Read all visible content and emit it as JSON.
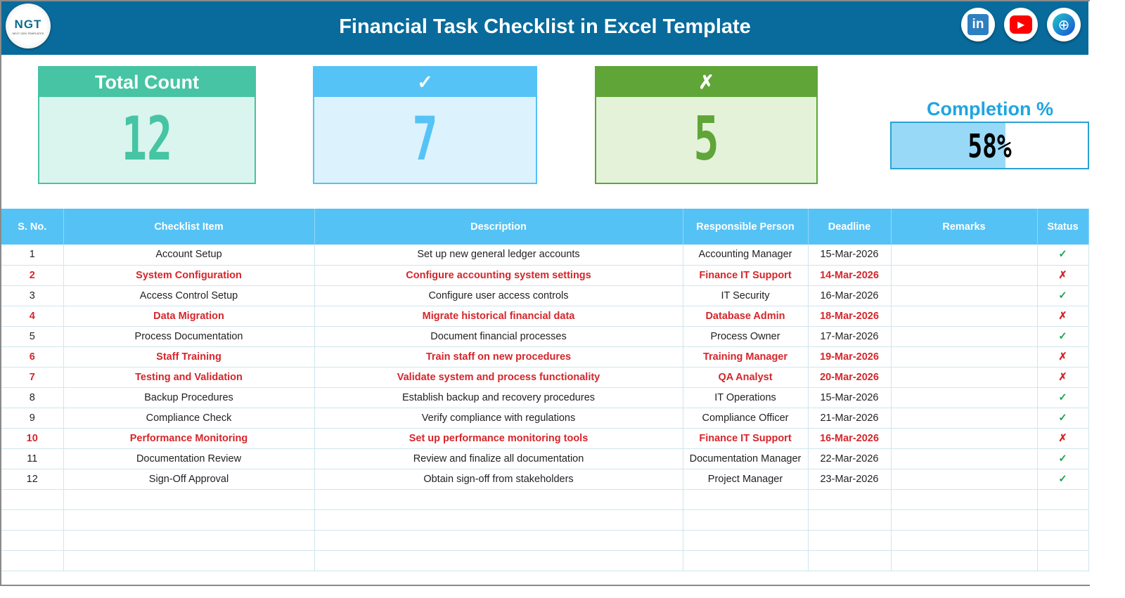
{
  "header": {
    "title": "Financial Task Checklist in Excel Template",
    "logo_text": "NGT",
    "logo_sub": "NEXT GEN TEMPLATES",
    "social": [
      "linkedin-icon",
      "youtube-icon",
      "globe-icon"
    ]
  },
  "cards": [
    {
      "label": "Total Count",
      "value": "12",
      "color": "#46c4a3",
      "bg": "#daf4ee"
    },
    {
      "label": "✓",
      "value": "7",
      "color": "#56c3f6",
      "bg": "#dcf2fc"
    },
    {
      "label": "✗",
      "value": "5",
      "color": "#5fa538",
      "bg": "#e3f2d9"
    }
  ],
  "completion": {
    "label": "Completion %",
    "value": "58%",
    "fraction": 0.58
  },
  "table": {
    "columns": [
      "S. No.",
      "Checklist Item",
      "Description",
      "Responsible Person",
      "Deadline",
      "Remarks",
      "Status"
    ],
    "rows": [
      [
        "1",
        "Account Setup",
        "Set up new general ledger accounts",
        "Accounting Manager",
        "15-Mar-2026",
        "",
        "✓"
      ],
      [
        "2",
        "System Configuration",
        "Configure accounting system settings",
        "Finance IT Support",
        "14-Mar-2026",
        "",
        "✗"
      ],
      [
        "3",
        "Access Control Setup",
        "Configure user access controls",
        "IT Security",
        "16-Mar-2026",
        "",
        "✓"
      ],
      [
        "4",
        "Data Migration",
        "Migrate historical financial data",
        "Database Admin",
        "18-Mar-2026",
        "",
        "✗"
      ],
      [
        "5",
        "Process Documentation",
        "Document financial processes",
        "Process Owner",
        "17-Mar-2026",
        "",
        "✓"
      ],
      [
        "6",
        "Staff Training",
        "Train staff on new procedures",
        "Training Manager",
        "19-Mar-2026",
        "",
        "✗"
      ],
      [
        "7",
        "Testing and Validation",
        "Validate system and process functionality",
        "QA Analyst",
        "20-Mar-2026",
        "",
        "✗"
      ],
      [
        "8",
        "Backup Procedures",
        "Establish backup and recovery procedures",
        "IT Operations",
        "15-Mar-2026",
        "",
        "✓"
      ],
      [
        "9",
        "Compliance Check",
        "Verify compliance with regulations",
        "Compliance Officer",
        "21-Mar-2026",
        "",
        "✓"
      ],
      [
        "10",
        "Performance Monitoring",
        "Set up performance monitoring tools",
        "Finance IT Support",
        "16-Mar-2026",
        "",
        "✗"
      ],
      [
        "11",
        "Documentation Review",
        "Review and finalize all documentation",
        "Documentation Manager",
        "22-Mar-2026",
        "",
        "✓"
      ],
      [
        "12",
        "Sign-Off Approval",
        "Obtain sign-off from stakeholders",
        "Project Manager",
        "23-Mar-2026",
        "",
        "✓"
      ]
    ]
  }
}
